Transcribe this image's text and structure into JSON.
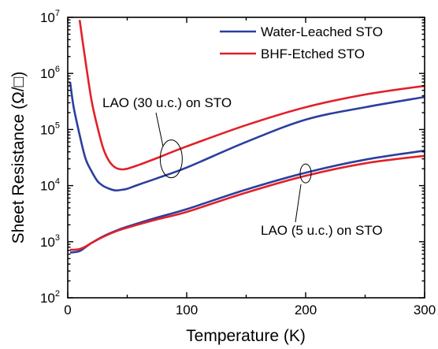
{
  "chart_data": {
    "type": "line",
    "xlabel": "Temperature (K)",
    "ylabel": "Sheet Resistance (Ω/□)",
    "xlim": [
      0,
      300
    ],
    "ylim": [
      100,
      10000000
    ],
    "yscale": "log",
    "grid": false,
    "legend_position": "top-right",
    "x_ticks": [
      0,
      100,
      200,
      300
    ],
    "y_ticks": [
      {
        "value": 100,
        "base": "10",
        "exp": "2"
      },
      {
        "value": 1000,
        "base": "10",
        "exp": "3"
      },
      {
        "value": 10000,
        "base": "10",
        "exp": "4"
      },
      {
        "value": 100000,
        "base": "10",
        "exp": "5"
      },
      {
        "value": 1000000,
        "base": "10",
        "exp": "6"
      },
      {
        "value": 10000000,
        "base": "10",
        "exp": "7"
      }
    ],
    "series": [
      {
        "name": "Water-Leached STO",
        "color": "#2b3f9e",
        "curves": [
          {
            "x": [
              2,
              5,
              10,
              15,
              20,
              25,
              30,
              35,
              40,
              45,
              50,
              60,
              75,
              100,
              150,
              200,
              250,
              300
            ],
            "y": [
              700000,
              250000,
              80000,
              30000,
              18000,
              12000,
              9800,
              8800,
              8200,
              8400,
              8800,
              10500,
              13500,
              21000,
              60000,
              150000,
              250000,
              380000
            ]
          },
          {
            "x": [
              2,
              5,
              10,
              15,
              20,
              30,
              40,
              50,
              75,
              100,
              150,
              200,
              250,
              300
            ],
            "y": [
              640,
              650,
              680,
              800,
              950,
              1250,
              1550,
              1850,
              2700,
              3800,
              8500,
              17000,
              29000,
              42000
            ]
          }
        ]
      },
      {
        "name": "BHF-Etched STO",
        "color": "#e2202a",
        "curves": [
          {
            "x": [
              10,
              15,
              20,
              25,
              30,
              35,
              40,
              45,
              50,
              60,
              75,
              100,
              150,
              200,
              250,
              300
            ],
            "y": [
              9000000,
              1600000,
              330000,
              110000,
              45000,
              27000,
              21000,
              19500,
              20000,
              23500,
              31000,
              50000,
              120000,
              250000,
              420000,
              600000
            ]
          },
          {
            "x": [
              2,
              5,
              10,
              15,
              20,
              30,
              40,
              50,
              75,
              100,
              150,
              200,
              250,
              300
            ],
            "y": [
              720,
              720,
              740,
              820,
              950,
              1230,
              1520,
              1780,
              2500,
              3400,
              7500,
              15000,
              25000,
              34000
            ]
          }
        ]
      }
    ],
    "annotations": [
      {
        "text": "LAO (30 u.c.) on STO",
        "x": 87,
        "y": 30000
      },
      {
        "text": "LAO (5 u.c.) on STO",
        "x": 200,
        "y": 16500
      }
    ]
  }
}
